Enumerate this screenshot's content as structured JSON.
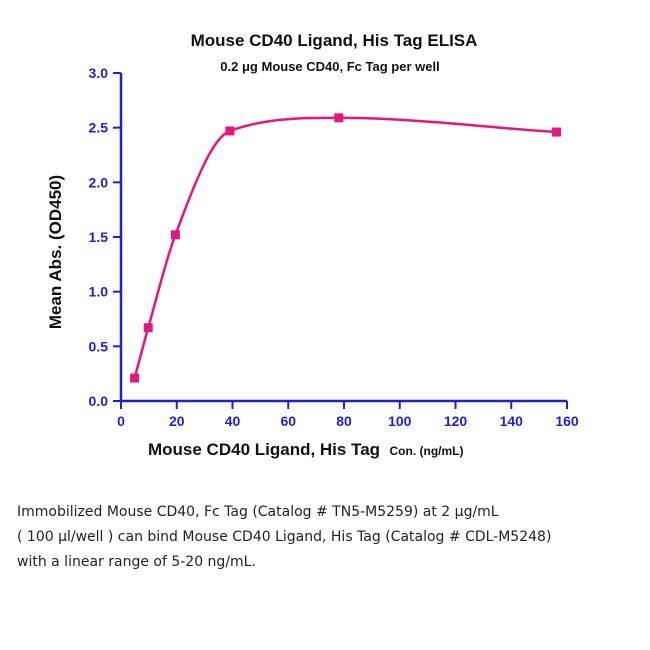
{
  "chart_data": {
    "type": "scatter",
    "title": "Mouse CD40 Ligand, His Tag ELISA",
    "subtitle": "0.2 μg Mouse CD40, Fc Tag per well",
    "xlabel": "Mouse CD40 Ligand, His Tag",
    "xlabel_suffix": "Con. (ng/mL)",
    "ylabel": "Mean Abs. (OD450)",
    "xlim": [
      0,
      160
    ],
    "ylim": [
      0.0,
      3.0
    ],
    "x_ticks": [
      "0",
      "20",
      "40",
      "60",
      "80",
      "100",
      "120",
      "140",
      "160"
    ],
    "y_ticks": [
      "0.0",
      "0.5",
      "1.0",
      "1.5",
      "2.0",
      "2.5",
      "3.0"
    ],
    "x_tick_values": [
      0,
      20,
      40,
      60,
      80,
      100,
      120,
      140,
      160
    ],
    "y_tick_values": [
      0.0,
      0.5,
      1.0,
      1.5,
      2.0,
      2.5,
      3.0
    ],
    "series": [
      {
        "x": [
          4.88,
          9.77,
          19.53,
          39.06,
          78.13,
          156.25
        ],
        "y": [
          0.21,
          0.67,
          1.52,
          2.47,
          2.59,
          2.46
        ],
        "fit_curve": true
      }
    ],
    "grid": false,
    "colors": {
      "series": "#e8157f",
      "axis": "#1f1fd6",
      "text": "#111111"
    }
  },
  "caption": {
    "lines": [
      "Immobilized Mouse CD40, Fc Tag (Catalog # TN5-M5259) at 2 μg/mL",
      "( 100 μl/well ) can bind Mouse CD40 Ligand, His Tag (Catalog # CDL-M5248)",
      "with a linear range of 5-20 ng/mL."
    ]
  }
}
